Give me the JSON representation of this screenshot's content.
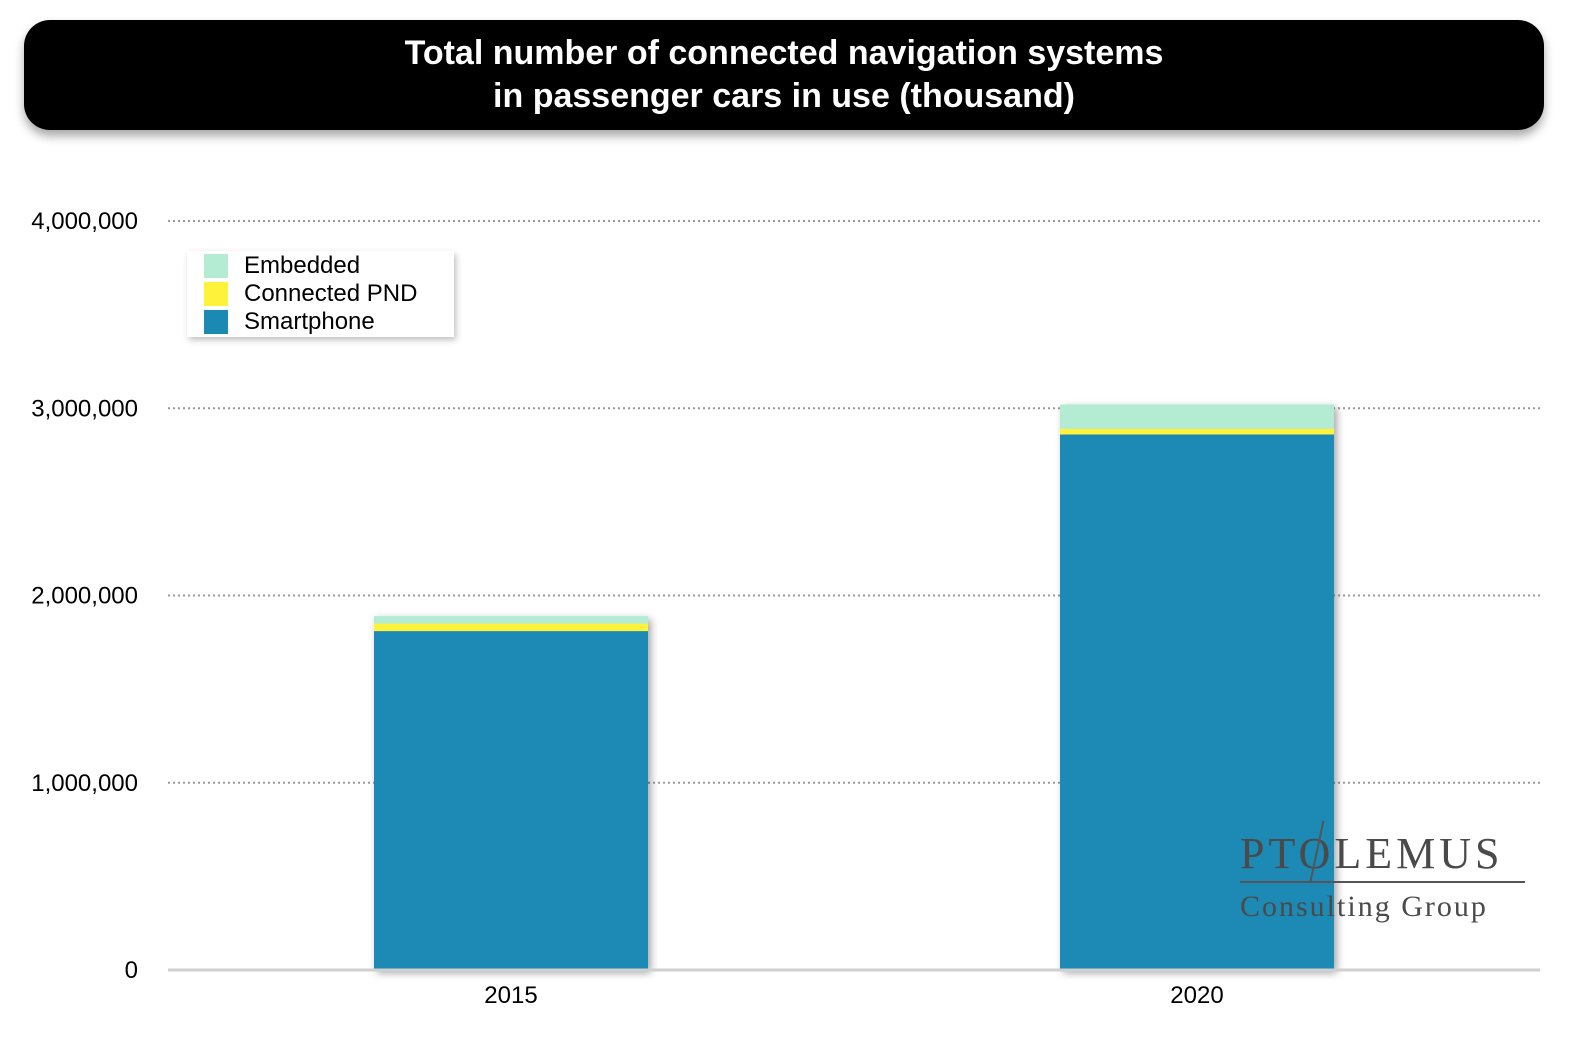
{
  "chart_data": {
    "type": "bar",
    "stacked": true,
    "title_lines": [
      "Total number of connected navigation systems",
      "in passenger cars in use (thousand)"
    ],
    "xlabel": "",
    "ylabel": "",
    "categories": [
      "2015",
      "2020"
    ],
    "series": [
      {
        "name": "Smartphone",
        "color": "#1A8AB5",
        "values": [
          1810000,
          2860000
        ]
      },
      {
        "name": "Connected PND",
        "color": "#FFF23B",
        "values": [
          40000,
          30000
        ]
      },
      {
        "name": "Embedded",
        "color": "#B3EBD3",
        "values": [
          40000,
          130000
        ]
      }
    ],
    "ylim": [
      0,
      4000000
    ],
    "yticks": [
      0,
      1000000,
      2000000,
      3000000,
      4000000
    ],
    "ytick_labels": [
      "0",
      "1,000,000",
      "2,000,000",
      "3,000,000",
      "4,000,000"
    ],
    "grid": true,
    "legend_position": "top-left",
    "legend_order": [
      "Embedded",
      "Connected PND",
      "Smartphone"
    ]
  },
  "logo": {
    "name": "PTOLEMUS",
    "subtitle": "Consulting Group"
  }
}
